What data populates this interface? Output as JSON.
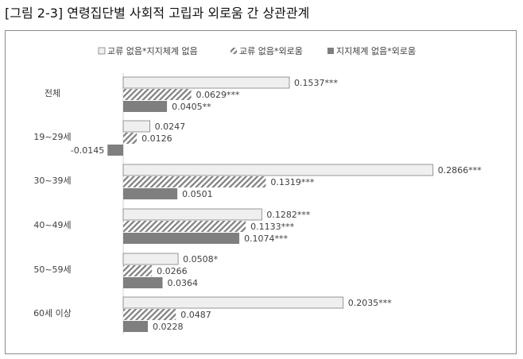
{
  "caption": "[그림 2-3] 연령집단별 사회적 고립과 외로움 간 상관관계",
  "chart_data": {
    "type": "bar",
    "orientation": "horizontal",
    "categories": [
      "전체",
      "19~29세",
      "30~39세",
      "40~49세",
      "50~59세",
      "60세 이상"
    ],
    "series": [
      {
        "name": "교류 없음*지지체계 없음",
        "values": [
          0.1537,
          0.0247,
          0.2866,
          0.1282,
          0.0508,
          0.2035
        ],
        "labels": [
          "0.1537***",
          "0.0247",
          "0.2866***",
          "0.1282***",
          "0.0508*",
          "0.2035***"
        ],
        "fill": "light",
        "color": "#efefef"
      },
      {
        "name": "교류 없음*외로움",
        "values": [
          0.0629,
          0.0126,
          0.1319,
          0.1133,
          0.0266,
          0.0487
        ],
        "labels": [
          "0.0629***",
          "0.0126",
          "0.1319***",
          "0.1133***",
          "0.0266",
          "0.0487"
        ],
        "fill": "hatched",
        "color": "#7f7f7f"
      },
      {
        "name": "지지체계 없음*외로움",
        "values": [
          0.0405,
          -0.0145,
          0.0501,
          0.1074,
          0.0364,
          0.0228
        ],
        "labels": [
          "0.0405**",
          "-0.0145",
          "0.0501",
          "0.1074***",
          "0.0364",
          "0.0228"
        ],
        "fill": "solid",
        "color": "#7f7f7f"
      }
    ],
    "legend_position": "top",
    "grid": false
  }
}
